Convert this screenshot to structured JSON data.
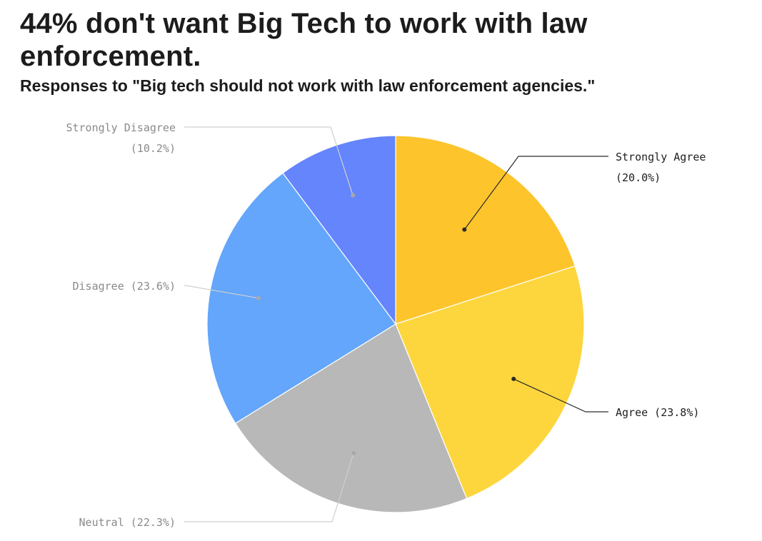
{
  "header": {
    "title": "44% don't want Big Tech to work with law enforcement.",
    "subtitle": "Responses to \"Big tech should not work with law enforcement agencies.\""
  },
  "chart_data": {
    "type": "pie",
    "title": "44% don't want Big Tech to work with law enforcement.",
    "subtitle": "Responses to \"Big tech should not work with law enforcement agencies.\"",
    "unit": "%",
    "start": "12 o'clock",
    "direction": "clockwise",
    "slices": [
      {
        "label": "Strongly Agree",
        "value": 20.0,
        "display": "(20.0%)",
        "color": "#FDC42C",
        "label_style": "dark"
      },
      {
        "label": "Agree",
        "value": 23.8,
        "display": "(23.8%)",
        "color": "#FDD63E",
        "label_style": "dark"
      },
      {
        "label": "Neutral",
        "value": 22.3,
        "display": "(22.3%)",
        "color": "#B8B8B8",
        "label_style": "muted"
      },
      {
        "label": "Disagree",
        "value": 23.6,
        "display": "(23.6%)",
        "color": "#63A6FB",
        "label_style": "muted"
      },
      {
        "label": "Strongly Disagree",
        "value": 10.2,
        "display": "(10.2%)",
        "color": "#6585FD",
        "label_style": "muted"
      }
    ],
    "slice_border_color": "#ffffff"
  }
}
